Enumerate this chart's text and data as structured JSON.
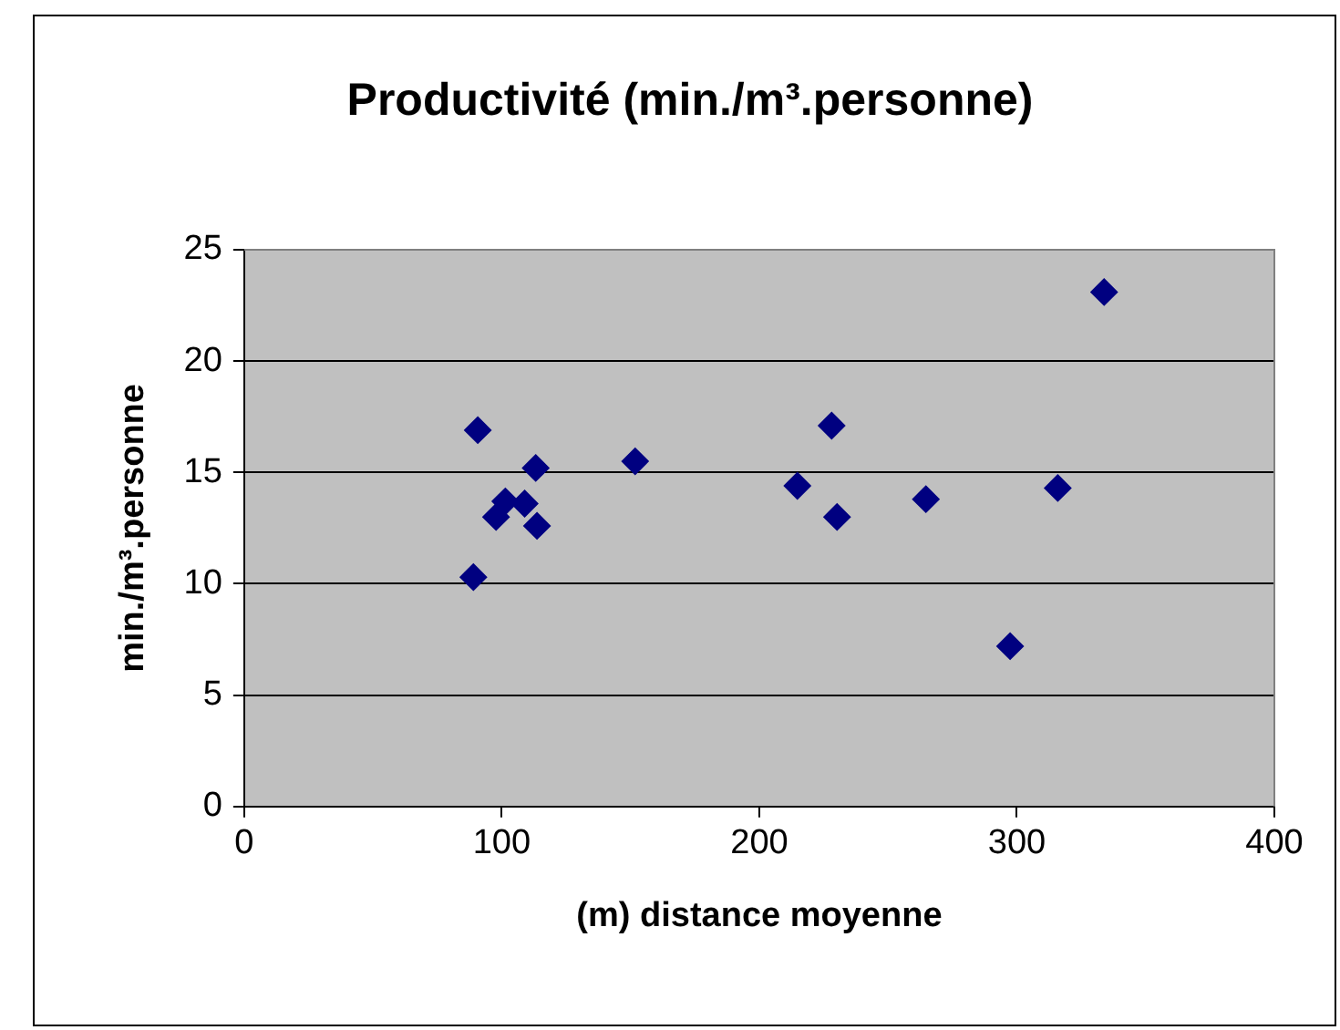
{
  "chart_data": {
    "type": "scatter",
    "title": "Productivité (min./m³.personne)",
    "xlabel": "(m) distance moyenne",
    "ylabel": "min./m³.personne",
    "series": [
      {
        "color": "#000080",
        "x": [
          90.7,
          89.0,
          97.8,
          101.4,
          108.9,
          113.2,
          113.7,
          151.8,
          214.8,
          228.1,
          230.2,
          264.7,
          297.4,
          315.9,
          333.9
        ],
        "values": [
          16.9,
          10.3,
          13.0,
          13.7,
          13.6,
          15.2,
          12.6,
          15.5,
          14.4,
          17.1,
          13.0,
          13.8,
          7.2,
          14.3,
          23.1
        ]
      }
    ],
    "xlim": [
      0,
      400
    ],
    "xticks": [
      0,
      100,
      200,
      300,
      400
    ],
    "ylim": [
      0,
      25
    ],
    "yticks": [
      0,
      5,
      10,
      15,
      20,
      25
    ],
    "grid": "y",
    "legend": false,
    "marker": "diamond"
  }
}
